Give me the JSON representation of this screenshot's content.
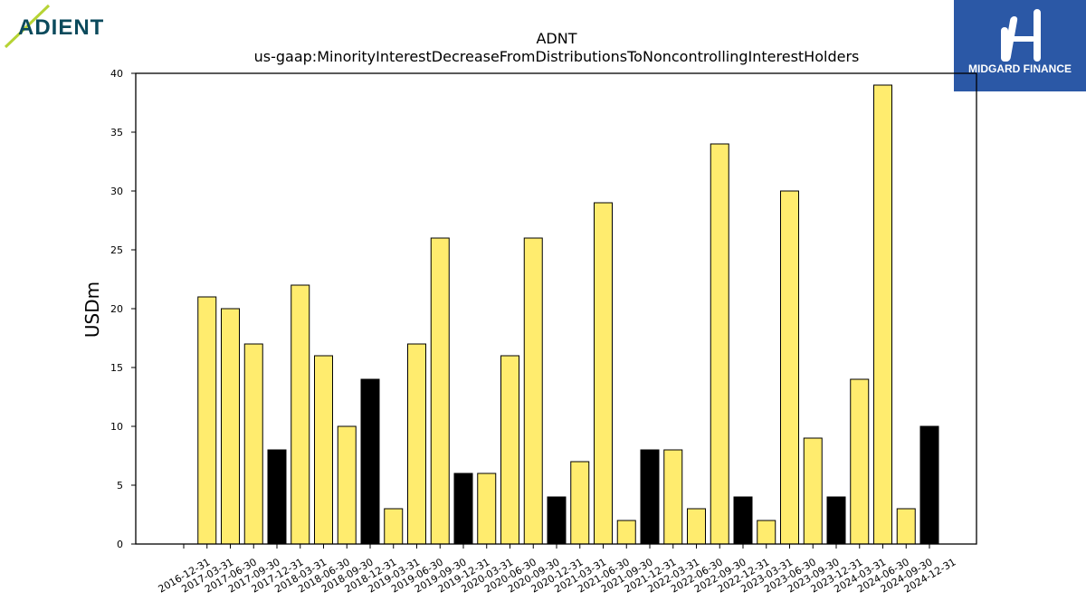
{
  "logos": {
    "left_text": "ADIENT",
    "right_text": "MIDGARD FINANCE"
  },
  "colors": {
    "bar_primary": "#ffec6e",
    "bar_quarter_end": "#000000",
    "logo_right_bg": "#2b58a6",
    "logo_left_text": "#0b4a5c",
    "logo_left_slash": "#b6d334"
  },
  "chart_data": {
    "type": "bar",
    "title": "ADNT",
    "subtitle": "us-gaap:MinorityInterestDecreaseFromDistributionsToNoncontrollingInterestHolders",
    "xlabel": "",
    "ylabel": "USDm",
    "ylim": [
      0,
      40
    ],
    "yticks": [
      0,
      5,
      10,
      15,
      20,
      25,
      30,
      35,
      40
    ],
    "grid": false,
    "categories": [
      "2016-12-31",
      "2017-03-31",
      "2017-06-30",
      "2017-09-30",
      "2017-12-31",
      "2018-03-31",
      "2018-06-30",
      "2018-09-30",
      "2018-12-31",
      "2019-03-31",
      "2019-06-30",
      "2019-09-30",
      "2019-12-31",
      "2020-03-31",
      "2020-06-30",
      "2020-09-30",
      "2020-12-31",
      "2021-03-31",
      "2021-06-30",
      "2021-09-30",
      "2021-12-31",
      "2022-03-31",
      "2022-06-30",
      "2022-09-30",
      "2022-12-31",
      "2023-03-31",
      "2023-06-30",
      "2023-09-30",
      "2023-12-31",
      "2024-03-31",
      "2024-06-30",
      "2024-09-30",
      "2024-12-31"
    ],
    "values": [
      0,
      21,
      20,
      17,
      8,
      22,
      16,
      10,
      14,
      3,
      17,
      26,
      6,
      6,
      16,
      26,
      4,
      7,
      29,
      2,
      8,
      8,
      3,
      34,
      4,
      2,
      30,
      9,
      4,
      14,
      39,
      3,
      10
    ],
    "bar_kind": [
      "yellow",
      "yellow",
      "yellow",
      "yellow",
      "black",
      "yellow",
      "yellow",
      "yellow",
      "black",
      "yellow",
      "yellow",
      "yellow",
      "black",
      "yellow",
      "yellow",
      "yellow",
      "black",
      "yellow",
      "yellow",
      "yellow",
      "black",
      "yellow",
      "yellow",
      "yellow",
      "black",
      "yellow",
      "yellow",
      "yellow",
      "black",
      "yellow",
      "yellow",
      "yellow",
      "black"
    ]
  }
}
